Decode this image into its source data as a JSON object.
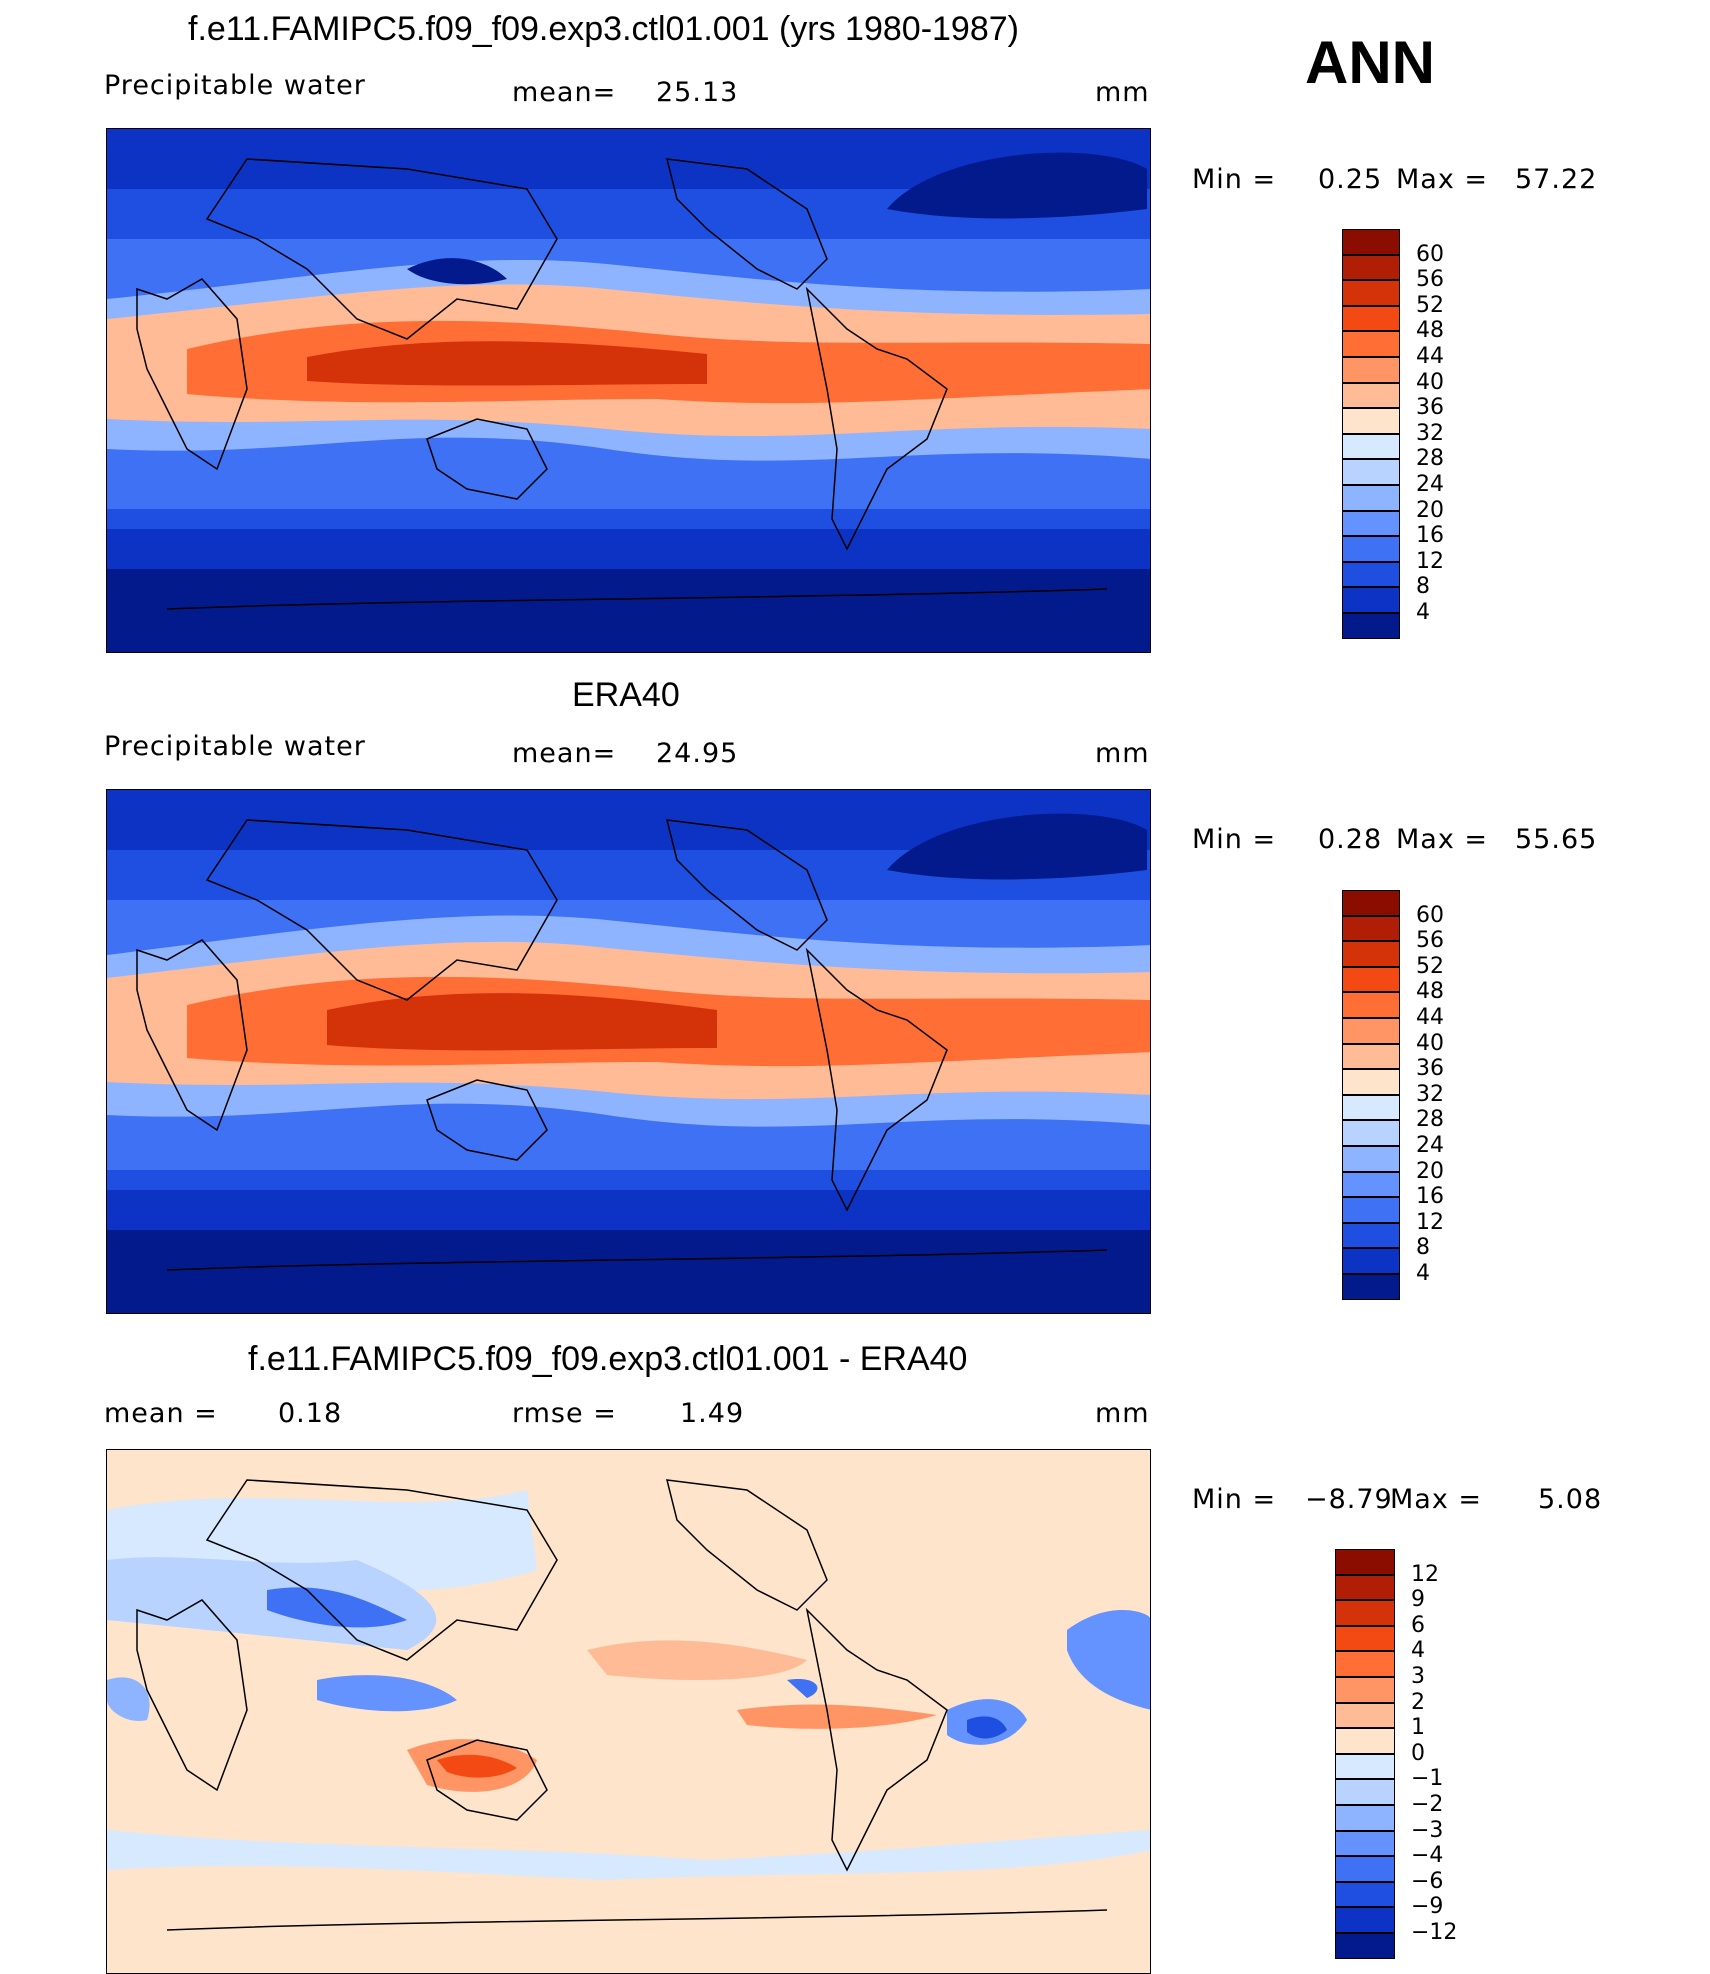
{
  "season": "ANN",
  "units": "mm",
  "panels": [
    {
      "title": "f.e11.FAMIPC5.f09_f09.exp3.ctl01.001 (yrs 1980-1987)",
      "variable": "Precipitable water",
      "stat1_label": "mean=",
      "stat1_value": "25.13",
      "stat2_label": "",
      "stat2_value": "",
      "minmax": {
        "min_label": "Min =",
        "min": "0.25",
        "max_label": "Max =",
        "max": "57.22"
      },
      "colorbar": {
        "labels": [
          "60",
          "56",
          "52",
          "48",
          "44",
          "40",
          "36",
          "32",
          "28",
          "24",
          "20",
          "16",
          "12",
          "8",
          "4"
        ],
        "colors": [
          "#8b0d00",
          "#b01e05",
          "#d43209",
          "#f24a12",
          "#ff6e34",
          "#ff9564",
          "#ffbb96",
          "#ffe4cc",
          "#d6e9ff",
          "#b8d3ff",
          "#8fb4ff",
          "#6493ff",
          "#3f71f5",
          "#1f4fe0",
          "#0c33c4",
          "#021a8c"
        ]
      }
    },
    {
      "title": "ERA40",
      "variable": "Precipitable water",
      "stat1_label": "mean=",
      "stat1_value": "24.95",
      "stat2_label": "",
      "stat2_value": "",
      "minmax": {
        "min_label": "Min =",
        "min": "0.28",
        "max_label": "Max =",
        "max": "55.65"
      },
      "colorbar": {
        "labels": [
          "60",
          "56",
          "52",
          "48",
          "44",
          "40",
          "36",
          "32",
          "28",
          "24",
          "20",
          "16",
          "12",
          "8",
          "4"
        ],
        "colors": [
          "#8b0d00",
          "#b01e05",
          "#d43209",
          "#f24a12",
          "#ff6e34",
          "#ff9564",
          "#ffbb96",
          "#ffe4cc",
          "#d6e9ff",
          "#b8d3ff",
          "#8fb4ff",
          "#6493ff",
          "#3f71f5",
          "#1f4fe0",
          "#0c33c4",
          "#021a8c"
        ]
      }
    },
    {
      "title": "f.e11.FAMIPC5.f09_f09.exp3.ctl01.001 - ERA40",
      "variable": "",
      "stat1_label": "mean =",
      "stat1_value": "0.18",
      "stat2_label": "rmse =",
      "stat2_value": "1.49",
      "minmax": {
        "min_label": "Min =",
        "min": "−8.79",
        "max_label": "Max =",
        "max": "5.08"
      },
      "colorbar": {
        "labels": [
          "12",
          "9",
          "6",
          "4",
          "3",
          "2",
          "1",
          "0",
          "−1",
          "−2",
          "−3",
          "−4",
          "−6",
          "−9",
          "−12"
        ],
        "colors": [
          "#8b0d00",
          "#b01e05",
          "#d43209",
          "#f24a12",
          "#ff6e34",
          "#ff9564",
          "#ffbb96",
          "#ffe4cc",
          "#d6e9ff",
          "#b8d3ff",
          "#8fb4ff",
          "#6493ff",
          "#3f71f5",
          "#1f4fe0",
          "#0c33c4",
          "#021a8c"
        ]
      }
    }
  ]
}
